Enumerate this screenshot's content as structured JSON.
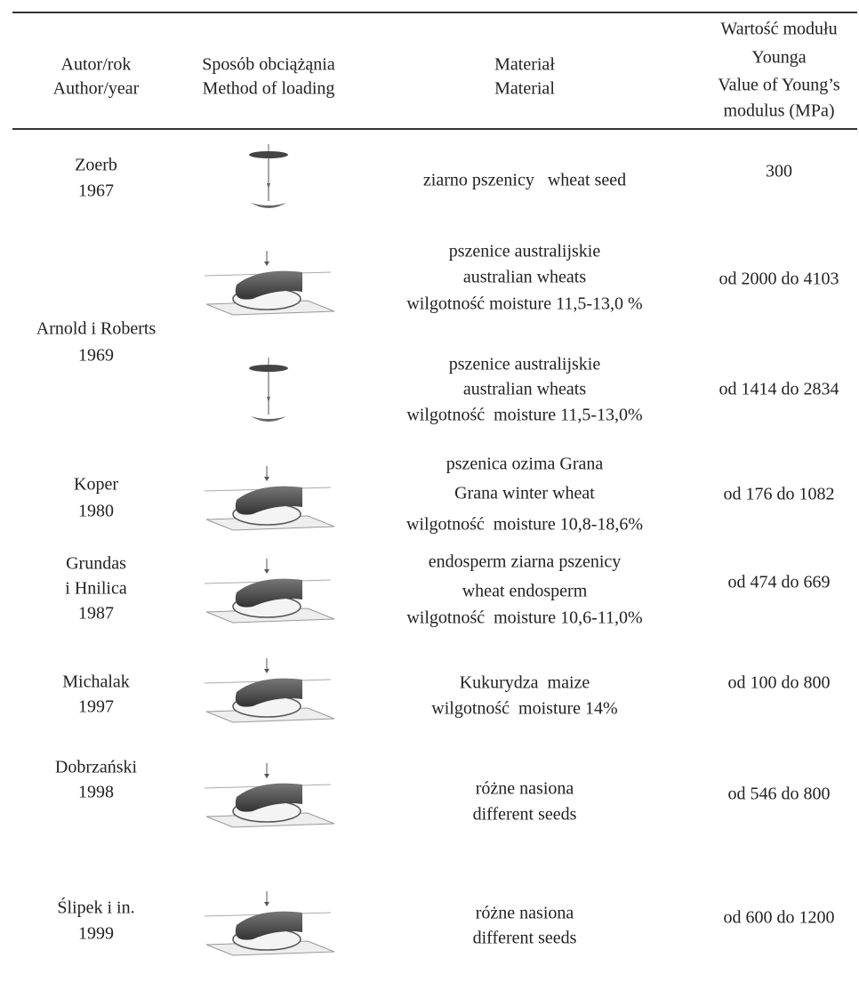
{
  "header": {
    "columns": [
      [
        "Autor/rok",
        "Author/year"
      ],
      [
        "Sposób obciążąnia",
        "Method of loading"
      ],
      [
        "Materiał",
        "Material"
      ],
      [
        "Wartość modułu",
        "Younga",
        "Value of Young’s",
        "modulus (MPa)"
      ]
    ]
  },
  "rows": [
    {
      "author": [
        "Zoerb",
        "1967"
      ],
      "entries": [
        {
          "material": [
            "ziarno pszenicy   wheat seed"
          ],
          "value": "300"
        }
      ]
    },
    {
      "author": [
        "Arnold i Roberts",
        "1969"
      ],
      "entries": [
        {
          "material": [
            "pszenice australijskie",
            "australian wheats",
            "wilgotność moisture 11,5-13,0 %"
          ],
          "value": "od 2000 do 4103"
        },
        {
          "material": [
            "pszenice australijskie",
            "australian wheats",
            "wilgotność  moisture 11,5-13,0%"
          ],
          "value": "od 1414 do 2834"
        }
      ]
    },
    {
      "author": [
        "Koper",
        "1980"
      ],
      "entries": [
        {
          "material": [
            "pszenica ozima Grana",
            "Grana winter wheat",
            "wilgotność  moisture 10,8-18,6%"
          ],
          "value": "od 176 do 1082"
        }
      ]
    },
    {
      "author": [
        "Grundas",
        "i Hnilica",
        "1987"
      ],
      "entries": [
        {
          "material": [
            "endosperm ziarna pszenicy",
            "wheat endosperm",
            "wilgotność  moisture 10,6-11,0%"
          ],
          "value": "od 474 do 669"
        }
      ]
    },
    {
      "author": [
        "Michalak",
        "1997"
      ],
      "entries": [
        {
          "material": [
            "Kukurydza  maize",
            "wilgotność  moisture 14%"
          ],
          "value": "od 100 do 800"
        }
      ]
    },
    {
      "author": [
        "Dobrzański",
        "1998"
      ],
      "entries": [
        {
          "material": [
            "różne nasiona",
            "different seeds"
          ],
          "value": "od 546 do 800"
        }
      ]
    },
    {
      "author": [
        "Ślipek i in.",
        "1999"
      ],
      "entries": [
        {
          "material": [
            "różne nasiona",
            "different seeds"
          ],
          "value": "od 600 do 1200"
        }
      ]
    }
  ]
}
